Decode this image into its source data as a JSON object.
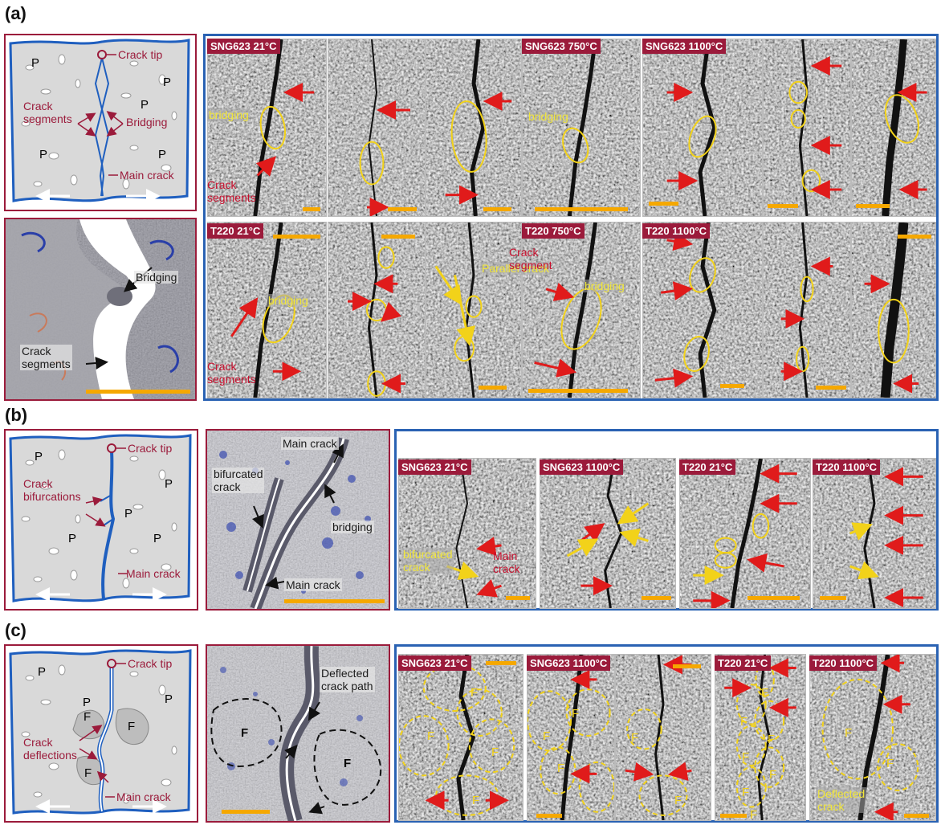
{
  "panels": {
    "a": {
      "label": "(a)",
      "schematic": {
        "crack_tip": "Crack tip",
        "crack_segments": "Crack\nsegments",
        "bridging": "Bridging",
        "main_crack": "Main crack",
        "particle": "P"
      },
      "render": {
        "bridging": "Bridging",
        "crack_segments": "Crack\nsegments"
      },
      "tags": [
        "SNG623 21°C",
        "SNG623 750°C",
        "SNG623 1100°C",
        "T220 21°C",
        "T220 750°C",
        "T220 1100°C"
      ],
      "annotations": {
        "bridging": "bridging",
        "crack_segments": "Crack\nsegments",
        "parallel_crack": "Parallel crack",
        "crack_segment": "Crack\nsegment"
      }
    },
    "b": {
      "label": "(b)",
      "schematic": {
        "crack_tip": "Crack tip",
        "crack_bifurcations": "Crack\nbifurcations",
        "main_crack": "Main crack",
        "particle": "P"
      },
      "render": {
        "main_crack_top": "Main crack",
        "bifurcated_crack": "bifurcated\ncrack",
        "bridging": "bridging",
        "main_crack_bottom": "Main crack"
      },
      "tags": [
        "SNG623 21°C",
        "SNG623 1100°C",
        "T220 21°C",
        "T220 1100°C"
      ],
      "annotations": {
        "bifurcated_crack": "bifurcated\ncrack",
        "main_crack": "Main\ncrack"
      }
    },
    "c": {
      "label": "(c)",
      "schematic": {
        "crack_tip": "Crack tip",
        "crack_deflections": "Crack\ndeflections",
        "main_crack": "Main crack",
        "particle": "P",
        "filler": "F"
      },
      "render": {
        "deflected_path": "Deflected\ncrack path",
        "filler": "F"
      },
      "tags": [
        "SNG623 21°C",
        "SNG623 1100°C",
        "T220 21°C",
        "T220 1100°C"
      ],
      "annotations": {
        "filler": "F",
        "deflected_crack": "Deflected\ncrack"
      }
    }
  },
  "colors": {
    "frame_red": "#9b1b3b",
    "frame_blue": "#2a62b3",
    "arrow_red": "#e01b1b",
    "ellipse_yellow": "#f2d21a",
    "scale_bar": "#f5a800"
  }
}
